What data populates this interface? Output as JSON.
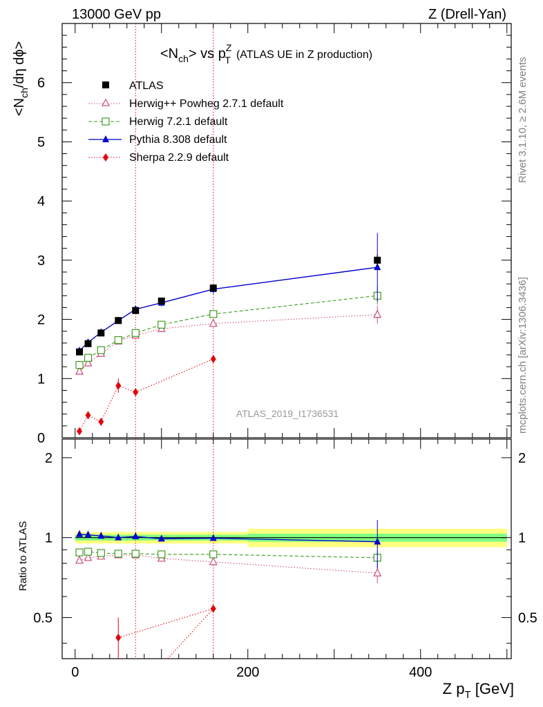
{
  "header": {
    "left": "13000 GeV pp",
    "right": "Z (Drell-Yan)"
  },
  "title": {
    "main": "<N",
    "main_sub": "ch",
    "main_mid": "> vs p",
    "main_sup": "Z",
    "main_sub2": "T",
    "suffix": "(ATLAS UE in Z production)"
  },
  "side_labels": {
    "rivet": "Rivet 3.1.10, ≥ 2.6M events",
    "mcplots": "mcplots.cern.ch [arXiv:1306.3436]"
  },
  "watermark": "ATLAS_2019_I1736531",
  "axes": {
    "main_ylabel": "<N",
    "main_ylabel_sub": "ch",
    "main_ylabel_rest": "/dη dϕ>",
    "ratio_ylabel": "Ratio to ATLAS",
    "xlabel": "Z p",
    "xlabel_sub": "T",
    "xlabel_rest": " [GeV]"
  },
  "colors": {
    "atlas": "#000000",
    "herwigpp": "#cc4a7a",
    "herwig7": "#3c9a1e",
    "pythia": "#0000cc",
    "sherpa": "#e3000b",
    "band_outer": "#ffff80",
    "band_inner": "#80ff80"
  },
  "chart_data": [
    {
      "type": "scatter",
      "panel": "main",
      "xlim": [
        -15,
        505
      ],
      "ylim": [
        0,
        7
      ],
      "y_ticks": [
        0,
        1,
        2,
        3,
        4,
        5,
        6
      ],
      "x_ticks": [
        0,
        200,
        400
      ],
      "legend_position": "top-left",
      "vertical_lines": [
        70,
        160
      ],
      "series": [
        {
          "name": "ATLAS",
          "key": "atlas",
          "marker": "square-filled",
          "x": [
            5,
            15,
            30,
            50,
            70,
            100,
            160,
            350
          ],
          "y": [
            1.45,
            1.59,
            1.77,
            1.98,
            2.15,
            2.31,
            2.53,
            3.0
          ],
          "yerr": [
            0.03,
            0.03,
            0.04,
            0.04,
            0.05,
            0.05,
            0.06,
            0.1
          ]
        },
        {
          "name": "Herwig++ Powheg 2.7.1 default",
          "key": "herwigpp",
          "marker": "triangle-open",
          "line": "dotted",
          "x": [
            5,
            15,
            30,
            50,
            70,
            100,
            160,
            350
          ],
          "y": [
            1.12,
            1.26,
            1.42,
            1.63,
            1.73,
            1.84,
            1.93,
            2.08
          ],
          "yerr": [
            0.02,
            0.02,
            0.03,
            0.03,
            0.04,
            0.04,
            0.05,
            0.15
          ]
        },
        {
          "name": "Herwig 7.2.1 default",
          "key": "herwig7",
          "marker": "square-open",
          "line": "dashed",
          "x": [
            5,
            15,
            30,
            50,
            70,
            100,
            160,
            350
          ],
          "y": [
            1.23,
            1.35,
            1.48,
            1.65,
            1.77,
            1.91,
            2.09,
            2.4
          ],
          "yerr": [
            0.02,
            0.02,
            0.03,
            0.03,
            0.04,
            0.04,
            0.05,
            0.15
          ]
        },
        {
          "name": "Pythia 8.308 default",
          "key": "pythia",
          "marker": "triangle-filled",
          "line": "solid",
          "x": [
            5,
            15,
            30,
            50,
            70,
            100,
            160,
            350
          ],
          "y": [
            1.47,
            1.61,
            1.78,
            1.98,
            2.17,
            2.28,
            2.51,
            2.88
          ],
          "yerr": [
            0.03,
            0.03,
            0.04,
            0.05,
            0.05,
            0.06,
            0.08,
            0.58
          ]
        },
        {
          "name": "Sherpa 2.2.9 default",
          "key": "sherpa",
          "marker": "diamond-filled",
          "line": "dotted",
          "x": [
            5,
            15,
            30,
            50,
            70,
            160
          ],
          "y": [
            0.11,
            0.38,
            0.27,
            0.88,
            0.77,
            1.33
          ],
          "yerr": [
            0.03,
            0.06,
            0.06,
            0.12,
            0.05,
            0.05
          ]
        }
      ]
    },
    {
      "type": "scatter",
      "panel": "ratio",
      "ylabel": "Ratio to ATLAS",
      "ylim": [
        0.35,
        2.35
      ],
      "y_scale": "log",
      "y_ticks": [
        0.5,
        1,
        2
      ],
      "x_ticks": [
        0,
        200,
        400
      ],
      "xlim": [
        -15,
        505
      ],
      "reference": 1,
      "uncertainty_band": {
        "x_edges": [
          0,
          200,
          500
        ],
        "outer": [
          0.05,
          0.08
        ],
        "inner": [
          0.025,
          0.035
        ]
      },
      "series": [
        {
          "key": "herwigpp",
          "x": [
            5,
            15,
            30,
            50,
            70,
            100,
            160,
            350
          ],
          "y": [
            0.82,
            0.84,
            0.85,
            0.86,
            0.86,
            0.835,
            0.81,
            0.735
          ],
          "yerr": [
            0.01,
            0.01,
            0.01,
            0.01,
            0.01,
            0.01,
            0.01,
            0.06
          ]
        },
        {
          "key": "herwig7",
          "x": [
            5,
            15,
            30,
            50,
            70,
            100,
            160,
            350
          ],
          "y": [
            0.88,
            0.885,
            0.875,
            0.87,
            0.87,
            0.865,
            0.865,
            0.84
          ],
          "yerr": [
            0.01,
            0.01,
            0.01,
            0.01,
            0.01,
            0.01,
            0.01,
            0.05
          ]
        },
        {
          "key": "pythia",
          "x": [
            5,
            15,
            30,
            50,
            70,
            100,
            160,
            350
          ],
          "y": [
            1.03,
            1.025,
            1.015,
            1.0,
            1.01,
            0.99,
            0.995,
            0.965
          ],
          "yerr": [
            0.01,
            0.01,
            0.01,
            0.01,
            0.01,
            0.01,
            0.02,
            0.2
          ]
        },
        {
          "key": "sherpa",
          "x": [
            50,
            160
          ],
          "y": [
            0.42,
            0.54
          ],
          "yerr": [
            0.08,
            0.01
          ]
        }
      ]
    }
  ]
}
